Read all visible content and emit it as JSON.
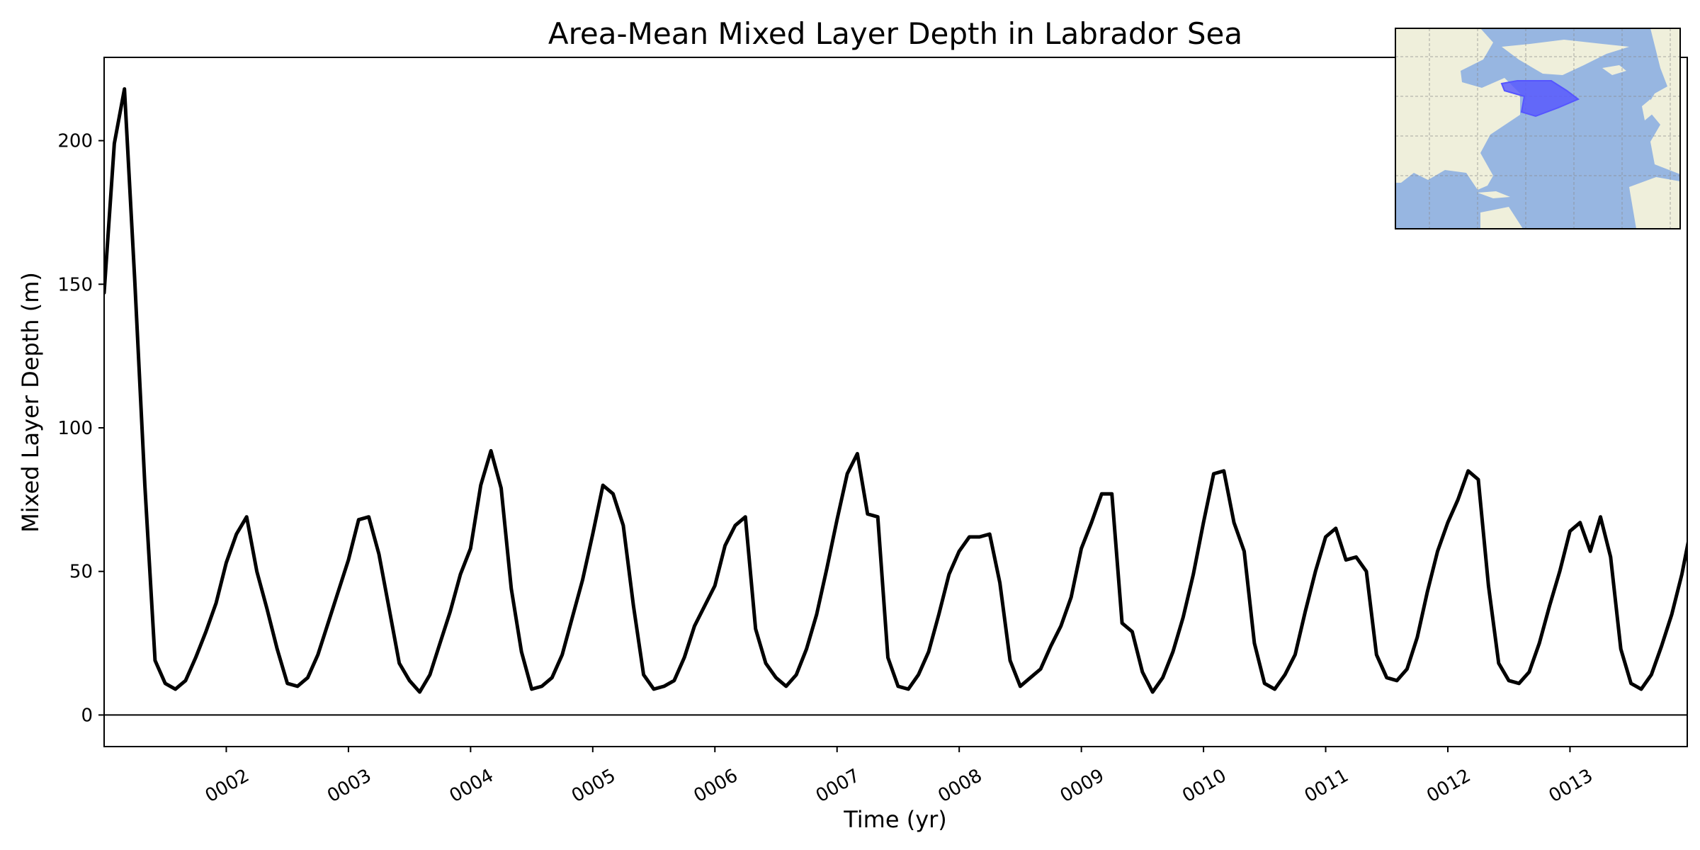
{
  "chart_data": {
    "type": "line",
    "title": "Area-Mean Mixed Layer Depth in Labrador Sea",
    "xlabel": "Time (yr)",
    "ylabel": "Mixed Layer Depth (m)",
    "xlim": [
      1,
      13.96
    ],
    "ylim": [
      -11,
      229
    ],
    "y_ticks": [
      0,
      50,
      100,
      150,
      200
    ],
    "x_ticks": [
      {
        "value": 2,
        "label": "0002"
      },
      {
        "value": 3,
        "label": "0003"
      },
      {
        "value": 4,
        "label": "0004"
      },
      {
        "value": 5,
        "label": "0005"
      },
      {
        "value": 6,
        "label": "0006"
      },
      {
        "value": 7,
        "label": "0007"
      },
      {
        "value": 8,
        "label": "0008"
      },
      {
        "value": 9,
        "label": "0009"
      },
      {
        "value": 10,
        "label": "0010"
      },
      {
        "value": 11,
        "label": "0011"
      },
      {
        "value": 12,
        "label": "0012"
      },
      {
        "value": 13,
        "label": "0013"
      }
    ],
    "reference_line": {
      "y": 0,
      "color": "#000000"
    },
    "grid": false,
    "series": [
      {
        "color": "#000000",
        "x_start": 1.0,
        "x_step": 0.08333,
        "values": [
          147,
          199,
          218,
          152,
          80,
          19,
          11,
          9,
          12,
          20,
          29,
          39,
          53,
          63,
          69,
          50,
          37,
          23,
          11,
          10,
          13,
          21,
          32,
          43,
          54,
          68,
          69,
          56,
          37,
          18,
          12,
          8,
          14,
          25,
          36,
          49,
          58,
          80,
          92,
          79,
          44,
          22,
          9,
          10,
          13,
          21,
          34,
          47,
          63,
          80,
          77,
          66,
          38,
          14,
          9,
          10,
          12,
          20,
          31,
          38,
          45,
          59,
          66,
          69,
          30,
          18,
          13,
          10,
          14,
          23,
          35,
          51,
          68,
          84,
          91,
          70,
          69,
          20,
          10,
          9,
          14,
          22,
          35,
          49,
          57,
          62,
          62,
          63,
          46,
          19,
          10,
          13,
          16,
          24,
          31,
          41,
          58,
          67,
          77,
          77,
          32,
          29,
          15,
          8,
          13,
          22,
          34,
          49,
          67,
          84,
          85,
          67,
          57,
          25,
          11,
          9,
          14,
          21,
          36,
          50,
          62,
          65,
          54,
          55,
          50,
          21,
          13,
          12,
          16,
          27,
          43,
          57,
          67,
          75,
          85,
          82,
          45,
          18,
          12,
          11,
          15,
          25,
          38,
          50,
          64,
          67,
          57,
          69,
          55,
          23,
          11,
          9,
          14,
          24,
          35,
          49,
          67
        ]
      }
    ]
  },
  "inset_map": {
    "ocean_color": "#97b6e1",
    "land_color": "#efefdb",
    "region_color": "#5555ff"
  }
}
